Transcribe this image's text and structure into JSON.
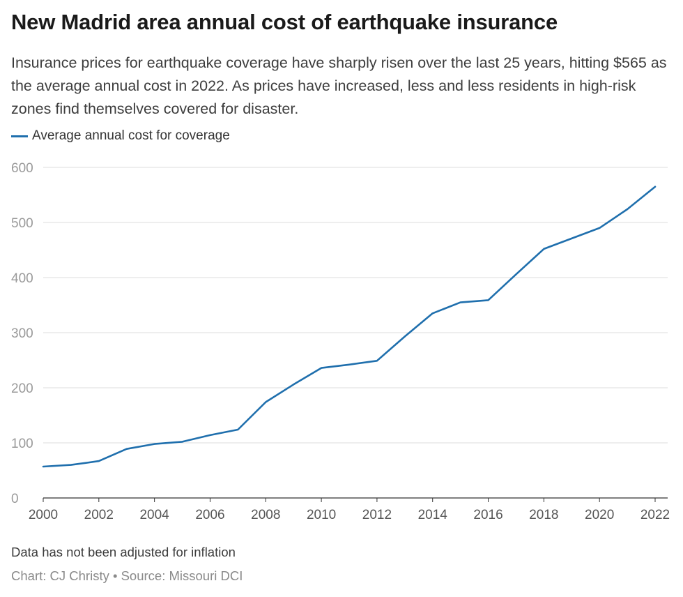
{
  "header": {
    "title": "New Madrid area annual cost of earthquake insurance",
    "subtitle": "Insurance prices for earthquake coverage have sharply risen over the last 25 years, hitting $565 as the average annual cost in 2022.  As prices have increased, less and less residents in high-risk zones find themselves covered for disaster."
  },
  "footer": {
    "note": "Data has not been adjusted for inflation",
    "credit": "Chart: CJ Christy • Source: Missouri DCI"
  },
  "colors": {
    "series": "#1f6fad",
    "grid": "#dddddd",
    "axis": "#333333"
  },
  "chart_data": {
    "type": "line",
    "title": "New Madrid area annual cost of earthquake insurance",
    "xlabel": "",
    "ylabel": "",
    "x": [
      2000,
      2001,
      2002,
      2003,
      2004,
      2005,
      2006,
      2007,
      2008,
      2009,
      2010,
      2011,
      2012,
      2013,
      2014,
      2015,
      2016,
      2017,
      2018,
      2019,
      2020,
      2021,
      2022
    ],
    "series": [
      {
        "name": "Average annual cost for coverage",
        "values": [
          57,
          60,
          67,
          89,
          98,
          102,
          114,
          124,
          174,
          206,
          236,
          242,
          249,
          293,
          335,
          355,
          359,
          406,
          452,
          471,
          490,
          524,
          565
        ]
      }
    ],
    "xlim": [
      2000,
      2022
    ],
    "ylim": [
      0,
      600
    ],
    "xticks": [
      2000,
      2002,
      2004,
      2006,
      2008,
      2010,
      2012,
      2014,
      2016,
      2018,
      2020,
      2022
    ],
    "yticks": [
      0,
      100,
      200,
      300,
      400,
      500,
      600
    ],
    "grid": true,
    "legend": "top-left"
  }
}
